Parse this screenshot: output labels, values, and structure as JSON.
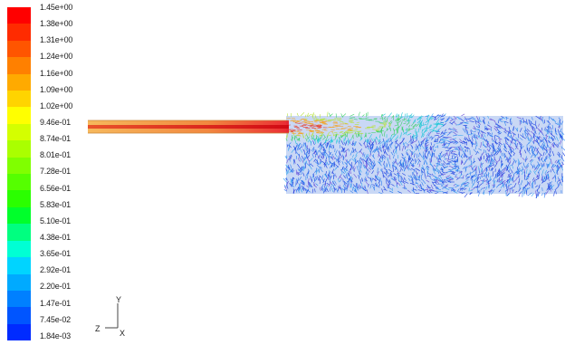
{
  "legend": {
    "tick_labels": [
      "1.45e+00",
      "1.38e+00",
      "1.31e+00",
      "1.24e+00",
      "1.16e+00",
      "1.09e+00",
      "1.02e+00",
      "9.46e-01",
      "8.74e-01",
      "8.01e-01",
      "7.28e-01",
      "6.56e-01",
      "5.83e-01",
      "5.10e-01",
      "4.38e-01",
      "3.65e-01",
      "2.92e-01",
      "2.20e-01",
      "1.47e-01",
      "7.45e-02",
      "1.84e-03"
    ],
    "colors": [
      "#ff0000",
      "#ff2b00",
      "#ff5500",
      "#ff8000",
      "#ffaa00",
      "#ffd400",
      "#ffff00",
      "#d4ff00",
      "#aaff00",
      "#80ff00",
      "#55ff00",
      "#2bff00",
      "#00ff2b",
      "#00ff80",
      "#00ffd4",
      "#00d4ff",
      "#00aaff",
      "#0080ff",
      "#0055ff",
      "#002bff"
    ]
  },
  "axes": {
    "y_label": "Y",
    "z_label": "Z",
    "x_label": "X"
  },
  "field": {
    "description_colors": {
      "jet_core": "#e8141e",
      "jet_edge": "#f5a623",
      "shear_layer": "#7fd63a",
      "chamber_low": "#2f6fe6"
    }
  }
}
